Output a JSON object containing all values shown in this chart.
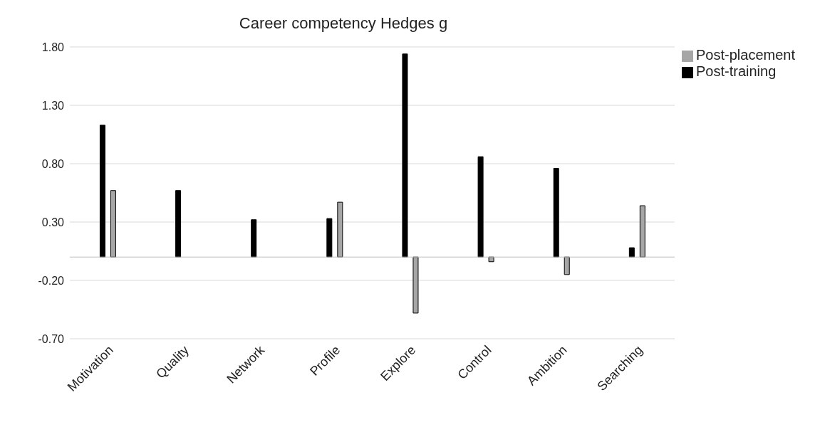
{
  "chart_data": {
    "type": "bar",
    "title": "Career competency Hedges g",
    "categories": [
      "Motivation",
      "Quality",
      "Network",
      "Profile",
      "Explore",
      "Control",
      "Ambition",
      "Searching"
    ],
    "series": [
      {
        "name": "Post-training",
        "color": "#000000",
        "values": [
          1.13,
          0.57,
          0.32,
          0.33,
          1.74,
          0.86,
          0.76,
          0.08
        ]
      },
      {
        "name": "Post-placement",
        "color": "#a6a6a6",
        "values": [
          0.57,
          null,
          null,
          0.47,
          -0.48,
          -0.04,
          -0.15,
          0.44
        ]
      }
    ],
    "ylim": [
      -0.7,
      1.8
    ],
    "yticks": [
      {
        "value": -0.7,
        "label": "-0.70"
      },
      {
        "value": -0.2,
        "label": "-0.20"
      },
      {
        "value": 0.3,
        "label": "0.30"
      },
      {
        "value": 0.8,
        "label": "0.80"
      },
      {
        "value": 1.3,
        "label": "1.30"
      },
      {
        "value": 1.8,
        "label": "1.80"
      }
    ],
    "grid": "y",
    "legend": "top right"
  }
}
